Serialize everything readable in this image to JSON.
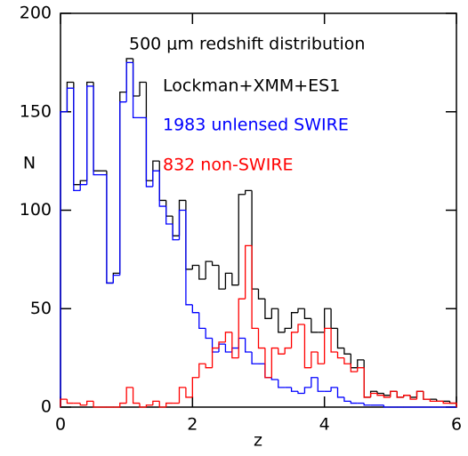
{
  "chart_data": {
    "type": "histogram",
    "title": "500 μm redshift distribution",
    "x_label": "z",
    "y_label": "N",
    "bins": [
      0,
      0.1,
      0.2,
      0.3,
      0.4,
      0.5,
      0.6,
      0.7,
      0.8,
      0.9,
      1,
      1.1,
      1.2,
      1.3,
      1.4,
      1.5,
      1.6,
      1.7,
      1.8,
      1.9,
      2,
      2.1,
      2.2,
      2.3,
      2.4,
      2.5,
      2.6,
      2.7,
      2.8,
      2.9,
      3,
      3.1,
      3.2,
      3.3,
      3.4,
      3.5,
      3.6,
      3.7,
      3.8,
      3.9,
      4,
      4.1,
      4.2,
      4.3,
      4.4,
      4.5,
      4.6,
      4.7,
      4.8,
      4.9,
      5,
      5.1,
      5.2,
      5.3,
      5.4,
      5.5,
      5.6,
      5.7,
      5.8,
      5.9,
      6
    ],
    "series": [
      {
        "name": "Lockman+XMM+ES1",
        "color": "#000000",
        "values": [
          150,
          165,
          113,
          115,
          165,
          120,
          120,
          63,
          68,
          160,
          177,
          158,
          165,
          115,
          125,
          105,
          97,
          87,
          105,
          70,
          72,
          65,
          74,
          72,
          60,
          68,
          62,
          108,
          110,
          60,
          55,
          45,
          50,
          38,
          40,
          48,
          50,
          45,
          38,
          38,
          50,
          40,
          30,
          27,
          20,
          24,
          5,
          8,
          7,
          6,
          8,
          5,
          6,
          5,
          8,
          4,
          4,
          3,
          3,
          2
        ]
      },
      {
        "name": "1983 unlensed SWIRE",
        "color": "#0000ff",
        "values": [
          150,
          162,
          110,
          113,
          163,
          118,
          118,
          63,
          67,
          155,
          175,
          147,
          147,
          112,
          120,
          102,
          93,
          85,
          100,
          52,
          48,
          40,
          35,
          28,
          32,
          28,
          30,
          35,
          28,
          22,
          22,
          15,
          14,
          10,
          10,
          8,
          7,
          10,
          15,
          8,
          8,
          10,
          5,
          3,
          2,
          2,
          1,
          1,
          1,
          0,
          0,
          0,
          0,
          0,
          0,
          0,
          0,
          0,
          0,
          0
        ]
      },
      {
        "name": "832 non-SWIRE",
        "color": "#ff0000",
        "values": [
          4,
          2,
          2,
          1,
          3,
          0,
          0,
          0,
          0,
          2,
          10,
          2,
          0,
          1,
          3,
          0,
          2,
          2,
          10,
          5,
          15,
          22,
          20,
          30,
          33,
          38,
          25,
          55,
          82,
          40,
          30,
          15,
          30,
          27,
          30,
          38,
          42,
          20,
          28,
          22,
          40,
          28,
          25,
          22,
          18,
          20,
          5,
          7,
          6,
          5,
          8,
          5,
          6,
          4,
          8,
          4,
          3,
          3,
          2,
          2
        ]
      }
    ],
    "xlim": [
      0,
      6
    ],
    "xticks": [
      0,
      2,
      4,
      6
    ],
    "ylim": [
      0,
      200
    ],
    "yticks": [
      0,
      50,
      100,
      150,
      200
    ]
  }
}
